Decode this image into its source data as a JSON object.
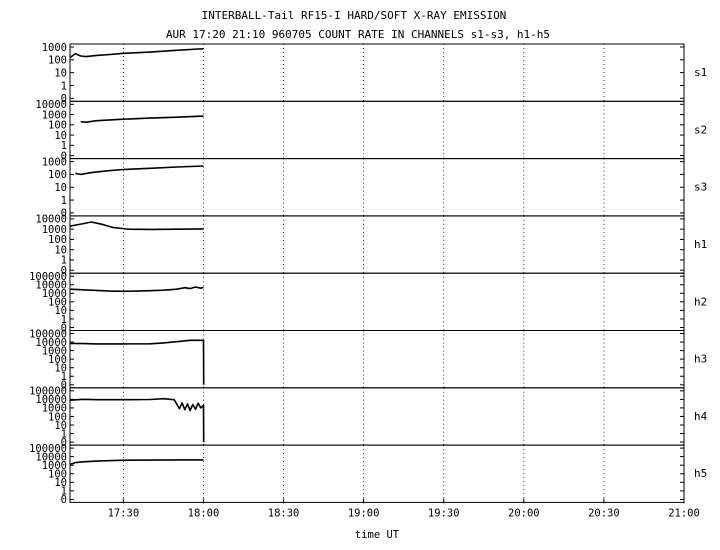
{
  "title": "INTERBALL-Tail RF15-I HARD/SOFT X-RAY EMISSION",
  "subtitle": "AUR 17:20 21:10 960705  COUNT RATE IN CHANNELS s1-s3, h1-h5",
  "chart_data": {
    "type": "line",
    "title": "INTERBALL-Tail RF15-I HARD/SOFT X-RAY EMISSION",
    "subtitle": "AUR 17:20 21:10 960705  COUNT RATE IN CHANNELS s1-s3, h1-h5",
    "xlabel": "time UT",
    "x_unit": "minutes after 17:00 UT",
    "xlim": [
      10,
      240
    ],
    "x_ticks": [
      {
        "v": 30,
        "label": "17:30"
      },
      {
        "v": 60,
        "label": "18:00"
      },
      {
        "v": 90,
        "label": "18:30"
      },
      {
        "v": 120,
        "label": "19:00"
      },
      {
        "v": 150,
        "label": "19:30"
      },
      {
        "v": 180,
        "label": "20:00"
      },
      {
        "v": 210,
        "label": "20:30"
      },
      {
        "v": 240,
        "label": "21:00"
      }
    ],
    "y_scale": "log",
    "grid": true,
    "panels": [
      {
        "name": "s1",
        "y_ticks": [
          "1000",
          "100",
          "10",
          "1",
          "0"
        ],
        "points": [
          [
            10,
            150
          ],
          [
            12,
            300
          ],
          [
            14,
            200
          ],
          [
            16,
            180
          ],
          [
            20,
            220
          ],
          [
            25,
            260
          ],
          [
            30,
            320
          ],
          [
            40,
            400
          ],
          [
            50,
            550
          ],
          [
            58,
            700
          ],
          [
            60,
            720
          ]
        ]
      },
      {
        "name": "s2",
        "y_ticks": [
          "10000",
          "1000",
          "100",
          "10",
          "1",
          "0"
        ],
        "points": [
          [
            14,
            200
          ],
          [
            16,
            180
          ],
          [
            20,
            250
          ],
          [
            25,
            300
          ],
          [
            30,
            350
          ],
          [
            40,
            450
          ],
          [
            50,
            550
          ],
          [
            60,
            700
          ]
        ]
      },
      {
        "name": "s3",
        "y_ticks": [
          "1000",
          "100",
          "10",
          "1",
          "0"
        ],
        "points": [
          [
            12,
            120
          ],
          [
            14,
            100
          ],
          [
            18,
            140
          ],
          [
            25,
            200
          ],
          [
            30,
            240
          ],
          [
            40,
            300
          ],
          [
            50,
            380
          ],
          [
            60,
            450
          ]
        ]
      },
      {
        "name": "h1",
        "y_ticks": [
          "10000",
          "1000",
          "100",
          "10",
          "1",
          "0"
        ],
        "points": [
          [
            10,
            2000
          ],
          [
            15,
            3500
          ],
          [
            18,
            5000
          ],
          [
            22,
            3000
          ],
          [
            26,
            1500
          ],
          [
            32,
            1000
          ],
          [
            40,
            950
          ],
          [
            50,
            1000
          ],
          [
            60,
            1050
          ]
        ]
      },
      {
        "name": "h2",
        "y_ticks": [
          "100000",
          "10000",
          "1000",
          "100",
          "10",
          "1",
          "0"
        ],
        "points": [
          [
            10,
            3000
          ],
          [
            15,
            2600
          ],
          [
            20,
            2200
          ],
          [
            25,
            1800
          ],
          [
            30,
            1700
          ],
          [
            35,
            1800
          ],
          [
            40,
            2000
          ],
          [
            45,
            2300
          ],
          [
            50,
            3000
          ],
          [
            53,
            4500
          ],
          [
            55,
            3500
          ],
          [
            57,
            5500
          ],
          [
            59,
            4000
          ],
          [
            60,
            5000
          ]
        ]
      },
      {
        "name": "h3",
        "y_ticks": [
          "100000",
          "10000",
          "1000",
          "100",
          "10",
          "1",
          "0"
        ],
        "points": [
          [
            10,
            7000
          ],
          [
            15,
            6500
          ],
          [
            20,
            6000
          ],
          [
            30,
            6000
          ],
          [
            40,
            6200
          ],
          [
            45,
            8000
          ],
          [
            50,
            11000
          ],
          [
            55,
            16000
          ],
          [
            60,
            16000
          ],
          [
            60.1,
            0
          ]
        ]
      },
      {
        "name": "h4",
        "y_ticks": [
          "100000",
          "10000",
          "1000",
          "100",
          "10",
          "1",
          "0"
        ],
        "points": [
          [
            10,
            8000
          ],
          [
            15,
            10000
          ],
          [
            20,
            9000
          ],
          [
            30,
            9000
          ],
          [
            40,
            9500
          ],
          [
            45,
            12000
          ],
          [
            49,
            9000
          ],
          [
            51,
            800
          ],
          [
            52,
            4000
          ],
          [
            53,
            600
          ],
          [
            54,
            3000
          ],
          [
            55,
            500
          ],
          [
            56,
            2500
          ],
          [
            57,
            700
          ],
          [
            58,
            3500
          ],
          [
            59,
            1000
          ],
          [
            60,
            2000
          ],
          [
            60.1,
            0
          ]
        ]
      },
      {
        "name": "h5",
        "y_ticks": [
          "100000",
          "10000",
          "1000",
          "100",
          "10",
          "1",
          "0"
        ],
        "points": [
          [
            10,
            1200
          ],
          [
            12,
            2000
          ],
          [
            15,
            2500
          ],
          [
            20,
            3000
          ],
          [
            30,
            3800
          ],
          [
            40,
            4000
          ],
          [
            50,
            4200
          ],
          [
            60,
            4200
          ]
        ]
      }
    ]
  }
}
